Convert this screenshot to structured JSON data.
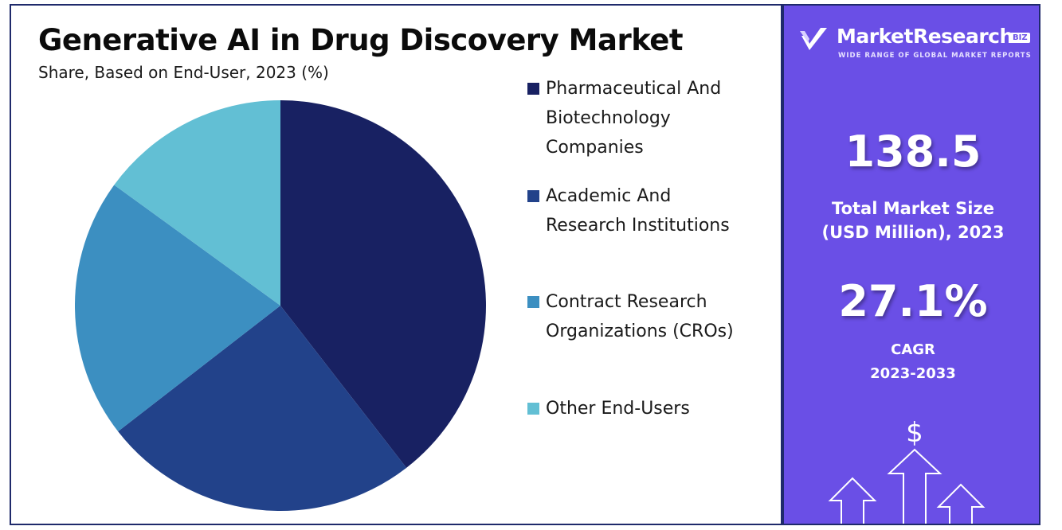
{
  "chart_data": {
    "type": "pie",
    "title": "Generative AI in Drug Discovery Market",
    "subtitle": "Share, Based on End-User, 2023 (%)",
    "categories": [
      "Pharmaceutical And Biotechnology Companies",
      "Academic And Research Institutions",
      "Contract Research Organizations (CROs)",
      "Other End-Users"
    ],
    "values": [
      39.5,
      25.0,
      20.5,
      15.0
    ],
    "colors": [
      "#182162",
      "#22428a",
      "#3c8fc1",
      "#62bfd4"
    ],
    "start_angle": "12 o'clock",
    "direction": "clockwise",
    "legend_position": "right"
  },
  "legend": {
    "items": [
      {
        "lines": [
          "Pharmaceutical And",
          "Biotechnology",
          "Companies"
        ]
      },
      {
        "lines": [
          "Academic And",
          "Research Institutions"
        ]
      },
      {
        "lines": [
          "Contract Research",
          "Organizations (CROs)"
        ]
      },
      {
        "lines": [
          "Other End-Users"
        ]
      }
    ]
  },
  "sidebar": {
    "brand_name": "MarketResearch",
    "brand_badge": "BIZ",
    "brand_tagline": "WIDE RANGE OF GLOBAL MARKET REPORTS",
    "market_size_value": "138.5",
    "market_size_label_line1": "Total Market Size",
    "market_size_label_line2": "(USD Million), 2023",
    "cagr_value": "27.1%",
    "cagr_label_line1": "CAGR",
    "cagr_label_line2": "2023-2033",
    "currency_symbol": "$"
  }
}
